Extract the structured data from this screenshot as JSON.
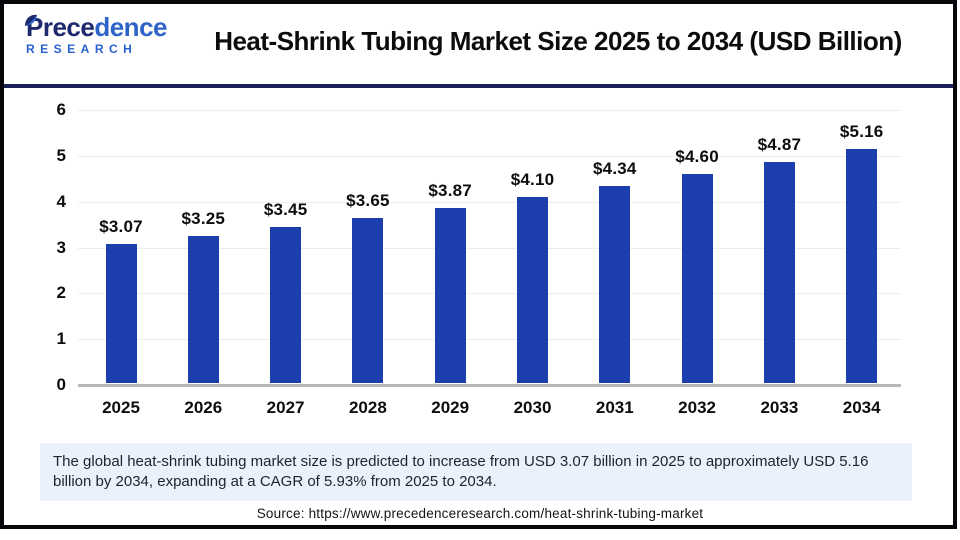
{
  "logo": {
    "brand_part1": "Prece",
    "brand_part2": "dence",
    "subtitle": "RESEARCH"
  },
  "header": {
    "title": "Heat-Shrink Tubing Market Size 2025 to 2034 (USD Billion)"
  },
  "chart_data": {
    "type": "bar",
    "title": "Heat-Shrink Tubing Market Size 2025 to 2034 (USD Billion)",
    "categories": [
      "2025",
      "2026",
      "2027",
      "2028",
      "2029",
      "2030",
      "2031",
      "2032",
      "2033",
      "2034"
    ],
    "values": [
      3.07,
      3.25,
      3.45,
      3.65,
      3.87,
      4.1,
      4.34,
      4.6,
      4.87,
      5.16
    ],
    "value_labels": [
      "$3.07",
      "$3.25",
      "$3.45",
      "$3.65",
      "$3.87",
      "$4.10",
      "$4.34",
      "$4.60",
      "$4.87",
      "$5.16"
    ],
    "xlabel": "",
    "ylabel": "",
    "ylim": [
      0,
      6
    ],
    "yticks": [
      0,
      1,
      2,
      3,
      4,
      5,
      6
    ],
    "grid": true,
    "legend": "none",
    "bar_color": "#1d3fae"
  },
  "note": {
    "text": "The global heat-shrink tubing market size is predicted to increase from USD 3.07 billion in 2025 to approximately USD 5.16 billion by 2034, expanding at a CAGR of 5.93% from 2025 to 2034."
  },
  "source": {
    "text": "Source: https://www.precedenceresearch.com/heat-shrink-tubing-market"
  },
  "colors": {
    "bar": "#1d3fae",
    "frame_border": "#07070b",
    "header_separator": "#1b2157",
    "logo_navy": "#1e2a6e",
    "logo_blue": "#2e63c8",
    "note_background": "#e9f1fb",
    "gridline": "#ededed",
    "axis_baseline": "#b8b8b8"
  }
}
